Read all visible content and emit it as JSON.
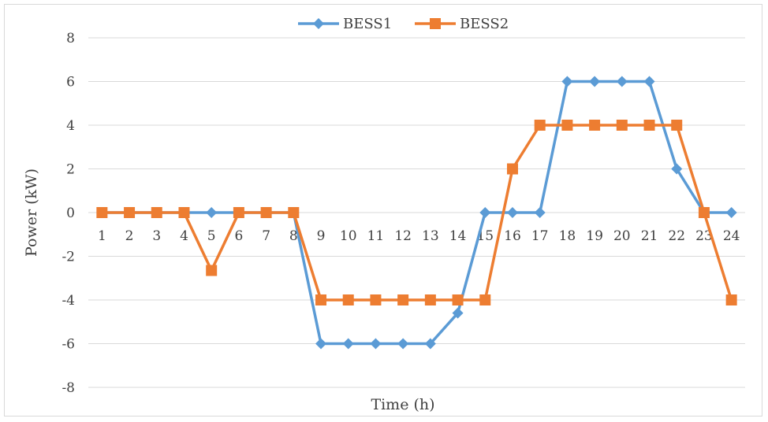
{
  "chart_data": {
    "type": "line",
    "title": "",
    "xlabel": "Time (h)",
    "ylabel": "Power (kW)",
    "ylim": [
      -8,
      8
    ],
    "yticks": [
      8,
      6,
      4,
      2,
      0,
      -2,
      -4,
      -6,
      -8
    ],
    "categories": [
      "1",
      "2",
      "3",
      "4",
      "5",
      "6",
      "7",
      "8",
      "9",
      "10",
      "11",
      "12",
      "13",
      "14",
      "15",
      "16",
      "17",
      "18",
      "19",
      "20",
      "21",
      "22",
      "23",
      "24"
    ],
    "grid": true,
    "legend_position": "top",
    "series": [
      {
        "name": "BESS1",
        "color": "#5b9bd5",
        "marker": "diamond",
        "values": [
          0,
          0,
          0,
          0,
          0,
          0,
          0,
          0,
          -6,
          -6,
          -6,
          -6,
          -6,
          -4.6,
          0,
          0,
          0,
          6,
          6,
          6,
          6,
          2,
          0,
          0
        ]
      },
      {
        "name": "BESS2",
        "color": "#ed7d31",
        "marker": "square",
        "values": [
          0,
          0,
          0,
          0,
          -2.65,
          0,
          0,
          0,
          -4,
          -4,
          -4,
          -4,
          -4,
          -4,
          -4,
          2,
          4,
          4,
          4,
          4,
          4,
          4,
          0,
          -4
        ]
      }
    ]
  }
}
